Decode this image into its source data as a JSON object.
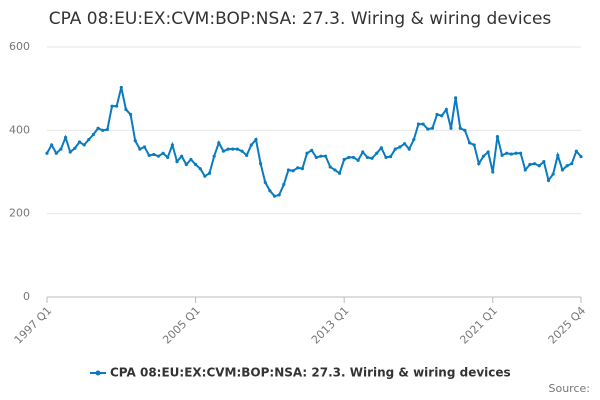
{
  "chart_data": {
    "type": "line",
    "title": "CPA 08:EU:EX:CVM:BOP:NSA: 27.3. Wiring & wiring devices",
    "source": "Source:",
    "categories": [
      "1997 Q1",
      null,
      null,
      null,
      null,
      null,
      null,
      null,
      null,
      null,
      null,
      null,
      null,
      null,
      null,
      null,
      null,
      null,
      null,
      null,
      null,
      null,
      null,
      null,
      null,
      null,
      null,
      null,
      null,
      null,
      null,
      null,
      "2005 Q1",
      null,
      null,
      null,
      null,
      null,
      null,
      null,
      null,
      null,
      null,
      null,
      null,
      null,
      null,
      null,
      null,
      null,
      null,
      null,
      null,
      null,
      null,
      null,
      null,
      null,
      null,
      null,
      null,
      null,
      null,
      null,
      "2013 Q1",
      null,
      null,
      null,
      null,
      null,
      null,
      null,
      null,
      null,
      null,
      null,
      null,
      null,
      null,
      null,
      null,
      null,
      null,
      null,
      null,
      null,
      null,
      null,
      null,
      null,
      null,
      null,
      null,
      null,
      null,
      null,
      "2021 Q1",
      null,
      null,
      null,
      null,
      null,
      null,
      null,
      null,
      null,
      null,
      null,
      null,
      null,
      null,
      null,
      null,
      null,
      null,
      "2025 Q4"
    ],
    "series": [
      {
        "name": "CPA 08:EU:EX:CVM:BOP:NSA: 27.3. Wiring & wiring devices",
        "color": "#0b7bbf",
        "values": [
          345,
          365,
          345,
          355,
          383,
          348,
          357,
          372,
          365,
          378,
          390,
          405,
          400,
          402,
          458,
          458,
          503,
          450,
          438,
          375,
          355,
          360,
          340,
          342,
          338,
          345,
          335,
          365,
          325,
          338,
          318,
          330,
          318,
          308,
          290,
          297,
          338,
          370,
          350,
          355,
          355,
          355,
          350,
          340,
          365,
          378,
          320,
          275,
          255,
          242,
          245,
          270,
          305,
          303,
          310,
          308,
          345,
          352,
          335,
          338,
          338,
          312,
          305,
          297,
          330,
          335,
          335,
          328,
          348,
          335,
          333,
          345,
          358,
          335,
          337,
          355,
          360,
          368,
          355,
          378,
          415,
          415,
          403,
          405,
          438,
          435,
          450,
          405,
          478,
          405,
          400,
          370,
          365,
          320,
          338,
          348,
          300,
          385,
          340,
          345,
          343,
          345,
          345,
          305,
          318,
          320,
          315,
          325,
          280,
          295,
          340,
          305,
          315,
          320,
          350,
          337
        ]
      }
    ],
    "ylim": [
      0,
      600
    ],
    "yticks": [
      0,
      200,
      400,
      600
    ],
    "grid": true
  }
}
